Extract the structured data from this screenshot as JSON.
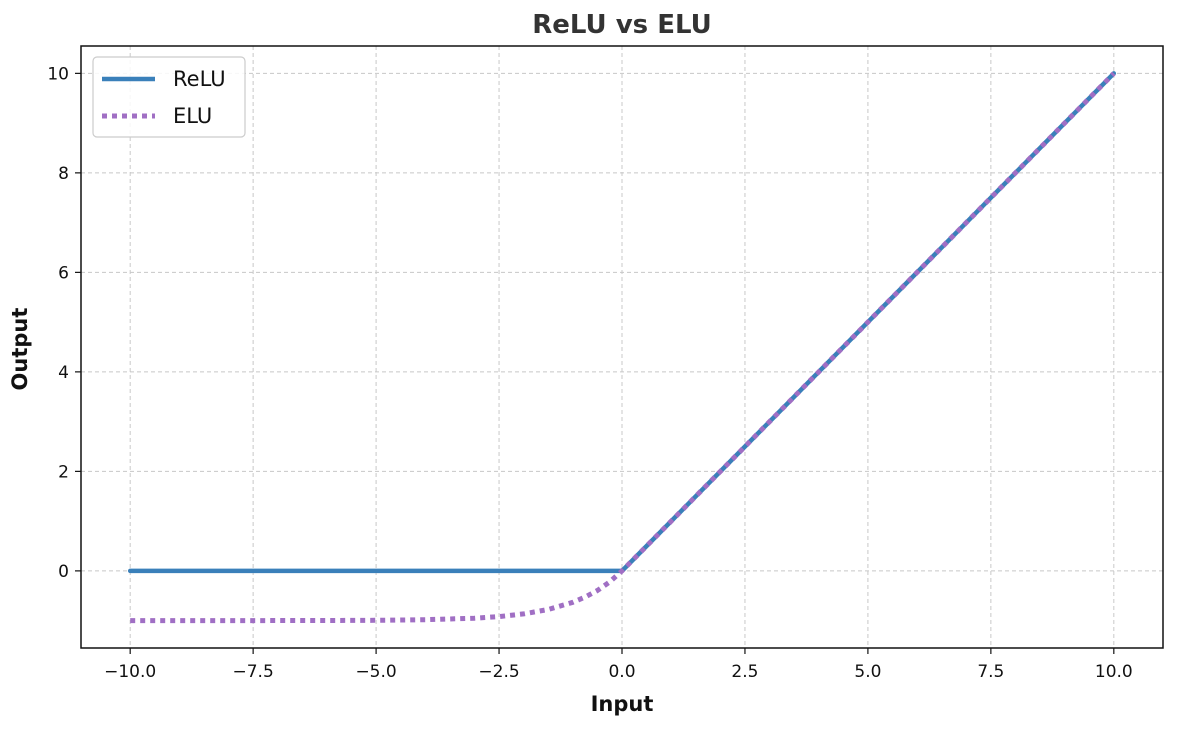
{
  "chart_data": {
    "type": "line",
    "title": "ReLU vs ELU",
    "xlabel": "Input",
    "ylabel": "Output",
    "xlim": [
      -11.0,
      11.0
    ],
    "ylim": [
      -1.55,
      10.55
    ],
    "xticks": [
      -10.0,
      -7.5,
      -5.0,
      -2.5,
      0.0,
      2.5,
      5.0,
      7.5,
      10.0
    ],
    "xtick_labels": [
      "−10.0",
      "−7.5",
      "−5.0",
      "−2.5",
      "0.0",
      "2.5",
      "5.0",
      "7.5",
      "10.0"
    ],
    "yticks": [
      0,
      2,
      4,
      6,
      8,
      10
    ],
    "ytick_labels": [
      "0",
      "2",
      "4",
      "6",
      "8",
      "10"
    ],
    "grid": true,
    "legend_position": "top-left",
    "series": [
      {
        "name": "ReLU",
        "color": "#3a80ba",
        "style": "solid",
        "x": [
          -10,
          -7.5,
          -5,
          -2.5,
          0,
          2.5,
          5,
          7.5,
          10
        ],
        "y": [
          0,
          0,
          0,
          0,
          0,
          2.5,
          5,
          7.5,
          10
        ]
      },
      {
        "name": "ELU",
        "color": "#a06fc4",
        "style": "dotted",
        "x": [
          -10,
          -8,
          -6,
          -5,
          -4,
          -3,
          -2.5,
          -2,
          -1.5,
          -1,
          -0.75,
          -0.5,
          -0.25,
          0,
          2.5,
          5,
          7.5,
          10
        ],
        "y": [
          -0.99995,
          -0.99966,
          -0.99752,
          -0.99326,
          -0.98168,
          -0.95021,
          -0.91792,
          -0.86466,
          -0.77687,
          -0.63212,
          -0.52763,
          -0.39347,
          -0.2212,
          0,
          2.5,
          5,
          7.5,
          10
        ]
      }
    ]
  }
}
